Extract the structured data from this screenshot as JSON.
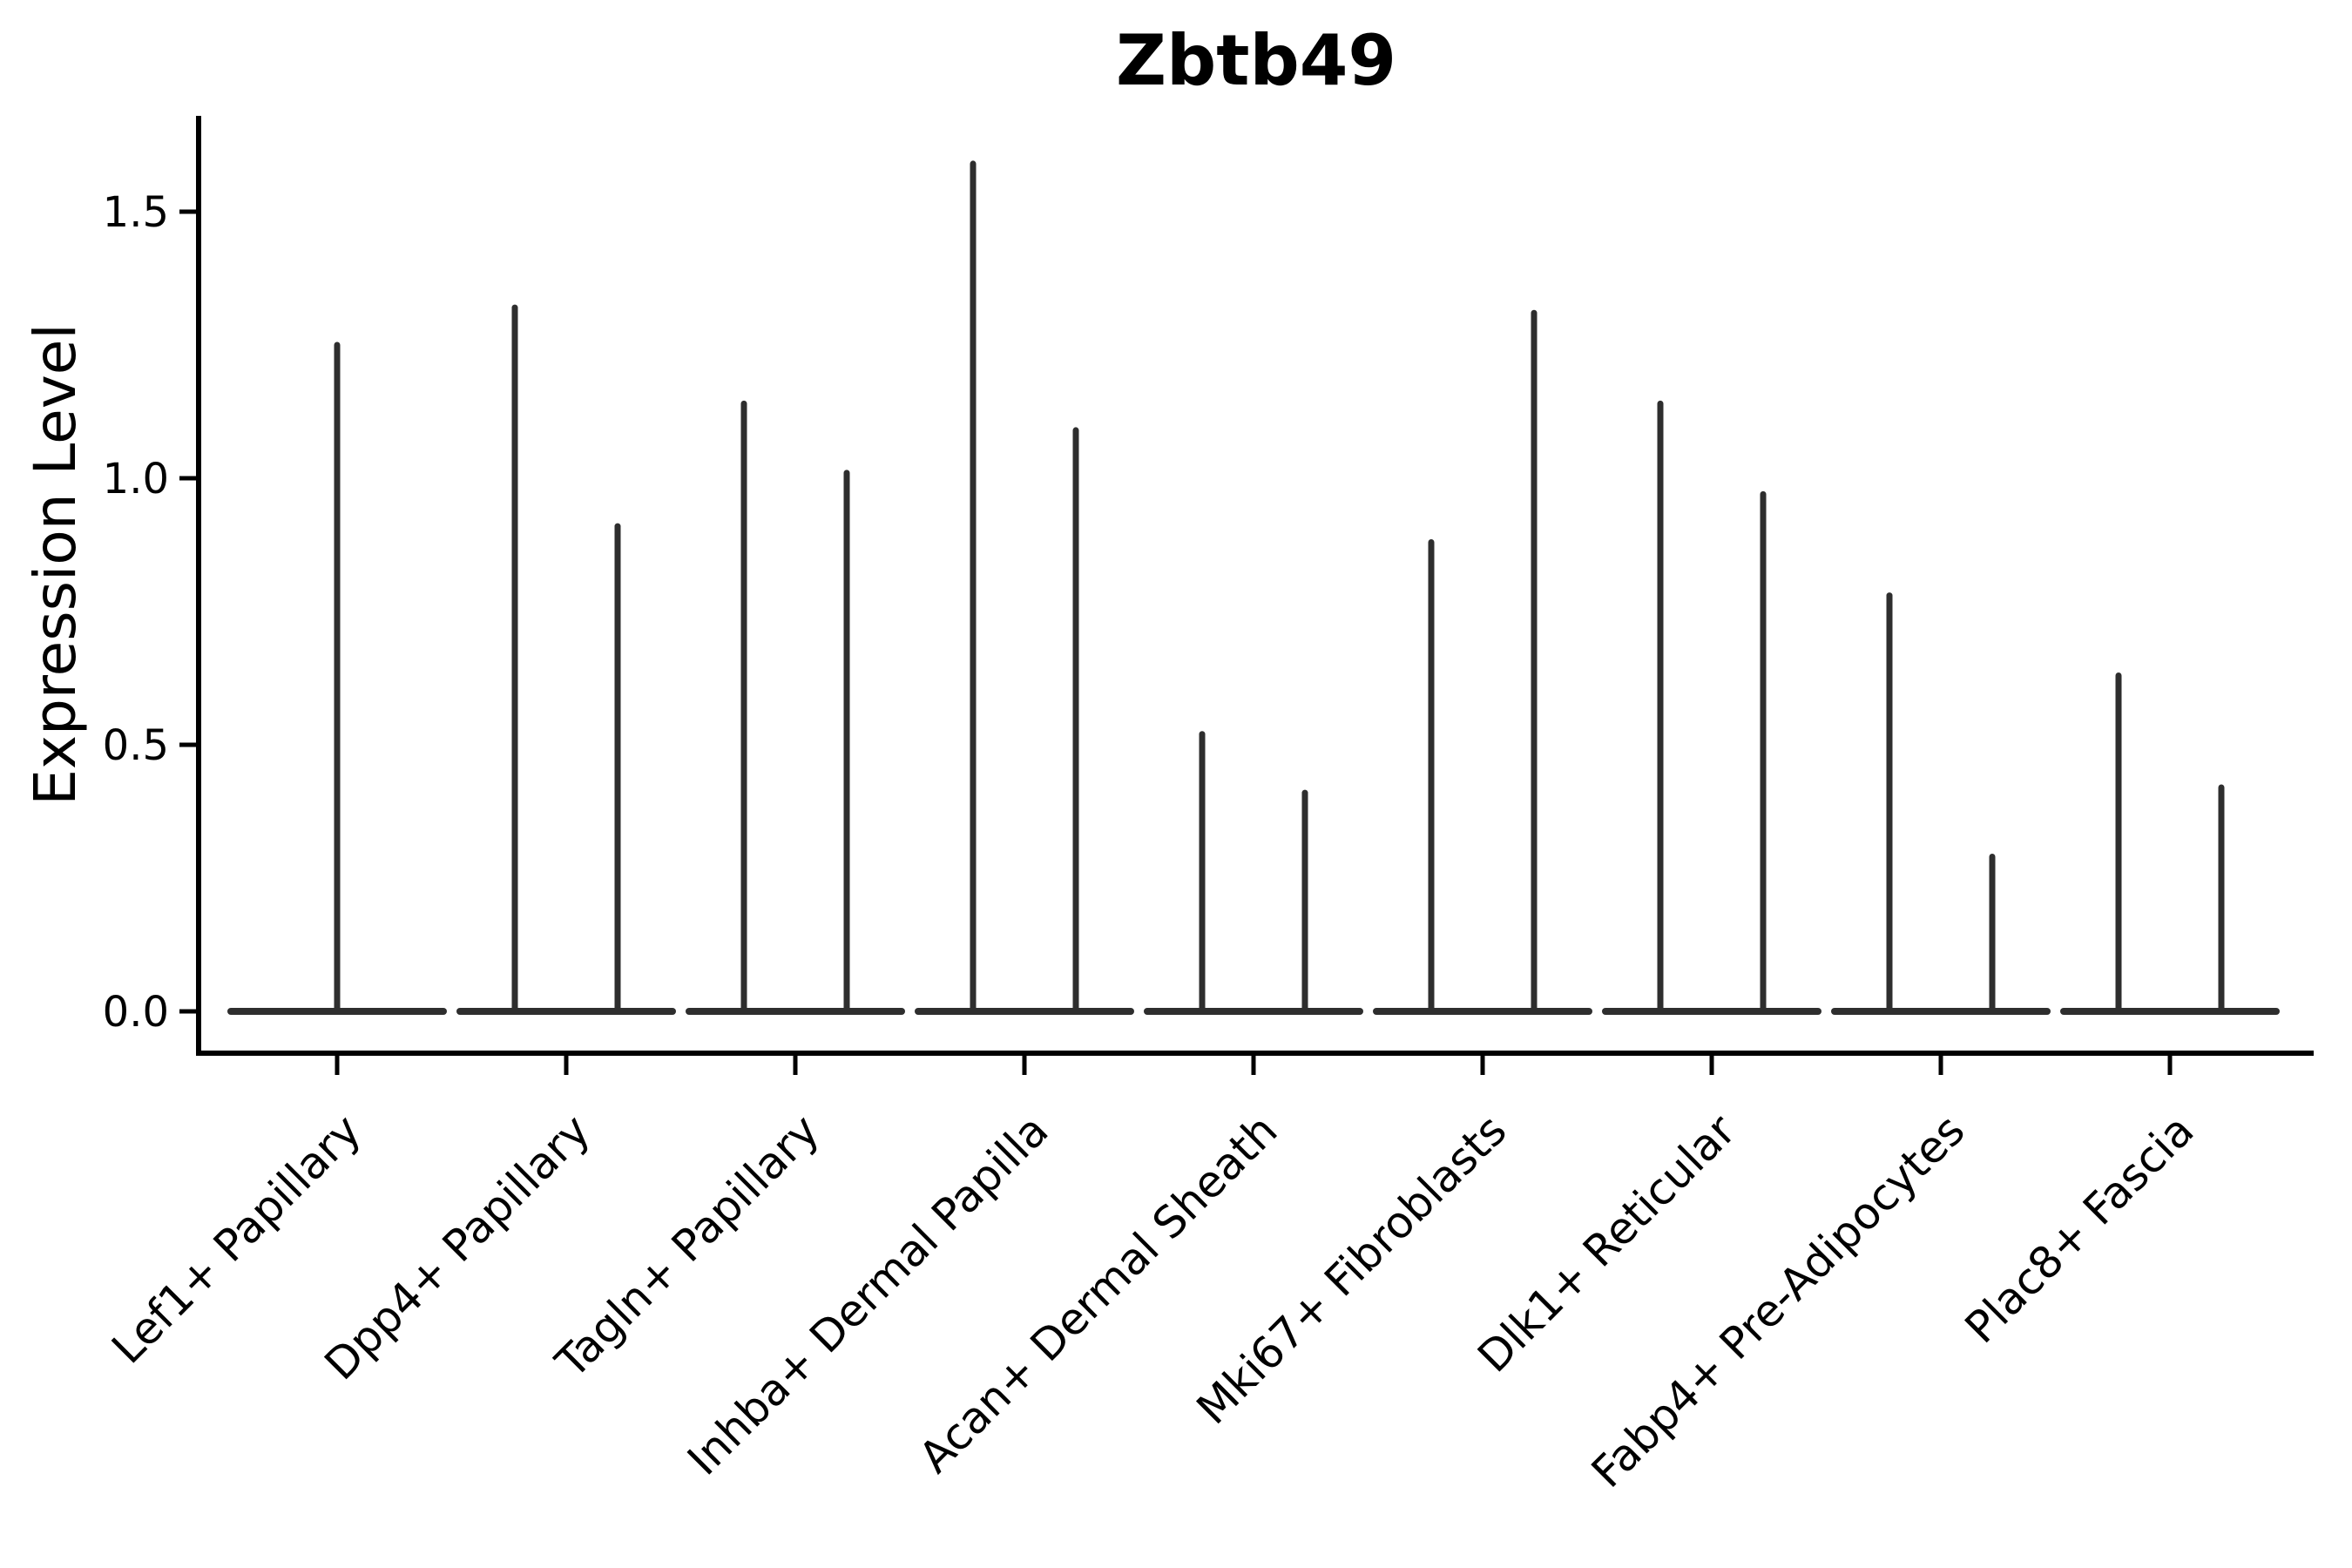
{
  "chart_data": {
    "type": "violin",
    "title": "Zbtb49",
    "ylabel": "Expression Level",
    "xlabel": "",
    "ylim": [
      -0.08,
      1.68
    ],
    "grid": false,
    "legend": "none",
    "yticks": [
      {
        "value": 0.0,
        "label": "0.0"
      },
      {
        "value": 0.5,
        "label": "0.5"
      },
      {
        "value": 1.0,
        "label": "1.0"
      },
      {
        "value": 1.5,
        "label": "1.5"
      }
    ],
    "categories": [
      {
        "label": "Lef1+ Papillary",
        "violins": [
          {
            "position": "center",
            "max": 1.25
          }
        ]
      },
      {
        "label": "Dpp4+ Papillary",
        "violins": [
          {
            "position": "left",
            "max": 1.32
          },
          {
            "position": "right",
            "max": 0.91
          }
        ]
      },
      {
        "label": "Tagln+ Papillary",
        "violins": [
          {
            "position": "left",
            "max": 1.14
          },
          {
            "position": "right",
            "max": 1.01
          }
        ]
      },
      {
        "label": "Inhba+ Dermal Papilla",
        "violins": [
          {
            "position": "left",
            "max": 1.59
          },
          {
            "position": "right",
            "max": 1.09
          }
        ]
      },
      {
        "label": "Acan+ Dermal Sheath",
        "violins": [
          {
            "position": "left",
            "max": 0.52
          },
          {
            "position": "right",
            "max": 0.41
          }
        ]
      },
      {
        "label": "Mki67+ Fibroblasts",
        "violins": [
          {
            "position": "left",
            "max": 0.88
          },
          {
            "position": "right",
            "max": 1.31
          }
        ]
      },
      {
        "label": "Dlk1+ Reticular",
        "violins": [
          {
            "position": "left",
            "max": 1.14
          },
          {
            "position": "right",
            "max": 0.97
          }
        ]
      },
      {
        "label": "Fabp4+ Pre-Adipocytes",
        "violins": [
          {
            "position": "left",
            "max": 0.78
          },
          {
            "position": "right",
            "max": 0.29
          }
        ]
      },
      {
        "label": "Plac8+ Fascia",
        "violins": [
          {
            "position": "left",
            "max": 0.63
          },
          {
            "position": "right",
            "max": 0.42
          }
        ]
      }
    ],
    "colors": {
      "violin": "#2e2e2e",
      "axis": "#000000",
      "text": "#000000",
      "background": "#ffffff"
    }
  }
}
